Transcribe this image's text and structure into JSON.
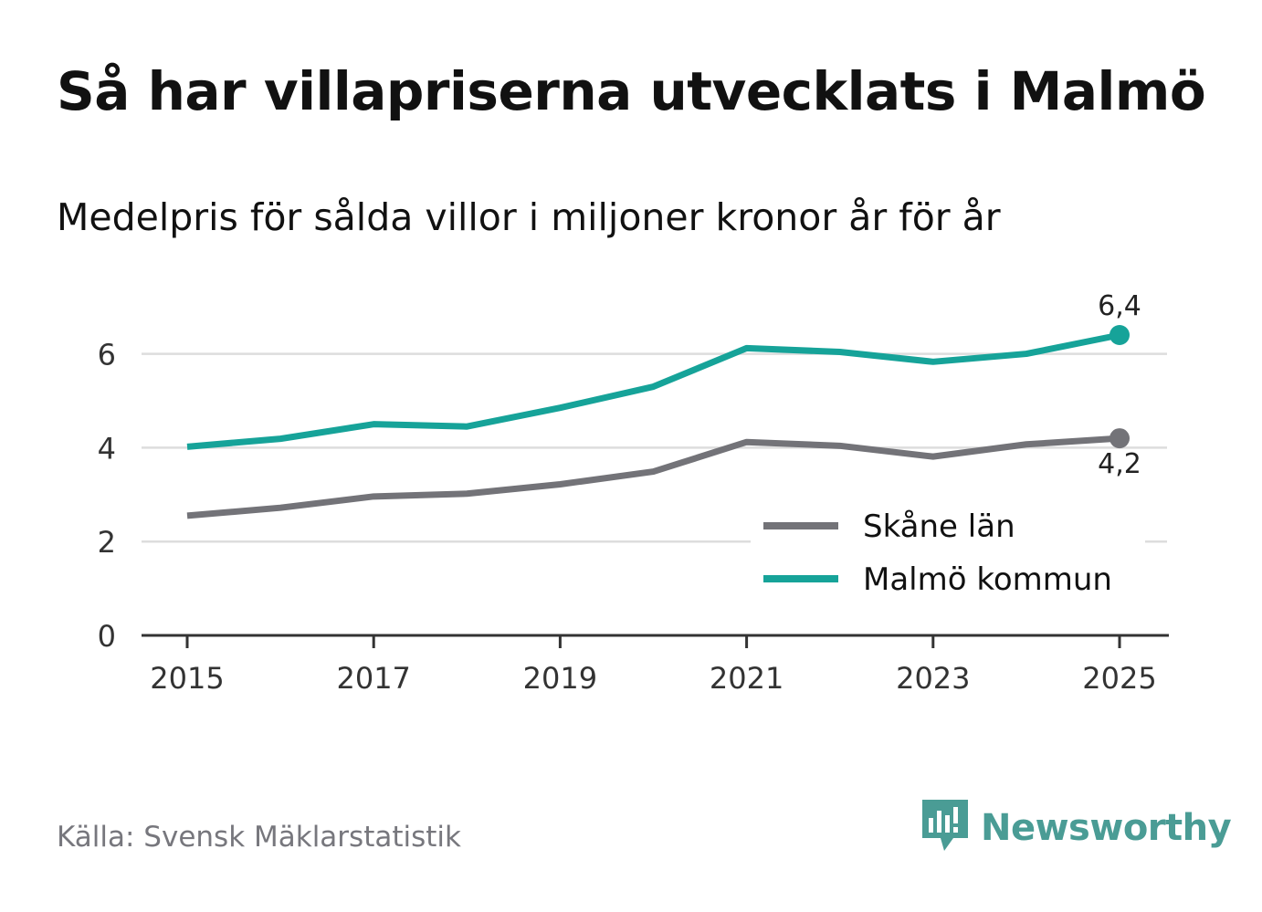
{
  "title": "Så har villapriserna utvecklats i Malmö",
  "subtitle": "Medelpris för sålda villor i miljoner kronor år för år",
  "source": "Källa: Svensk Mäklarstatistik",
  "brand": {
    "name": "Newsworthy",
    "icon": "newsworthy-logo-icon"
  },
  "colors": {
    "malmo": "#16a399",
    "skane": "#737378",
    "grid": "#dddddd",
    "axis": "#333333",
    "brand": "#4a9c95"
  },
  "chart_data": {
    "type": "line",
    "title": "Så har villapriserna utvecklats i Malmö",
    "subtitle": "Medelpris för sålda villor i miljoner kronor år för år",
    "x": [
      2015,
      2016,
      2017,
      2018,
      2019,
      2020,
      2021,
      2022,
      2023,
      2024,
      2025
    ],
    "xticks": [
      "2015",
      "2017",
      "2019",
      "2021",
      "2023",
      "2025"
    ],
    "xlim": [
      2015,
      2025
    ],
    "yticks": [
      "0",
      "2",
      "4",
      "6"
    ],
    "ylim": [
      0,
      6.4
    ],
    "grid": true,
    "legend_position": "bottom-right",
    "series": [
      {
        "name": "Skåne län",
        "color": "#737378",
        "values": [
          2.55,
          2.72,
          2.96,
          3.02,
          3.22,
          3.49,
          4.12,
          4.04,
          3.81,
          4.07,
          4.2
        ],
        "end_label": "4,2"
      },
      {
        "name": "Malmö kommun",
        "color": "#16a399",
        "values": [
          4.02,
          4.19,
          4.5,
          4.45,
          4.85,
          5.3,
          6.12,
          6.04,
          5.83,
          6.0,
          6.4
        ],
        "end_label": "6,4"
      }
    ]
  }
}
